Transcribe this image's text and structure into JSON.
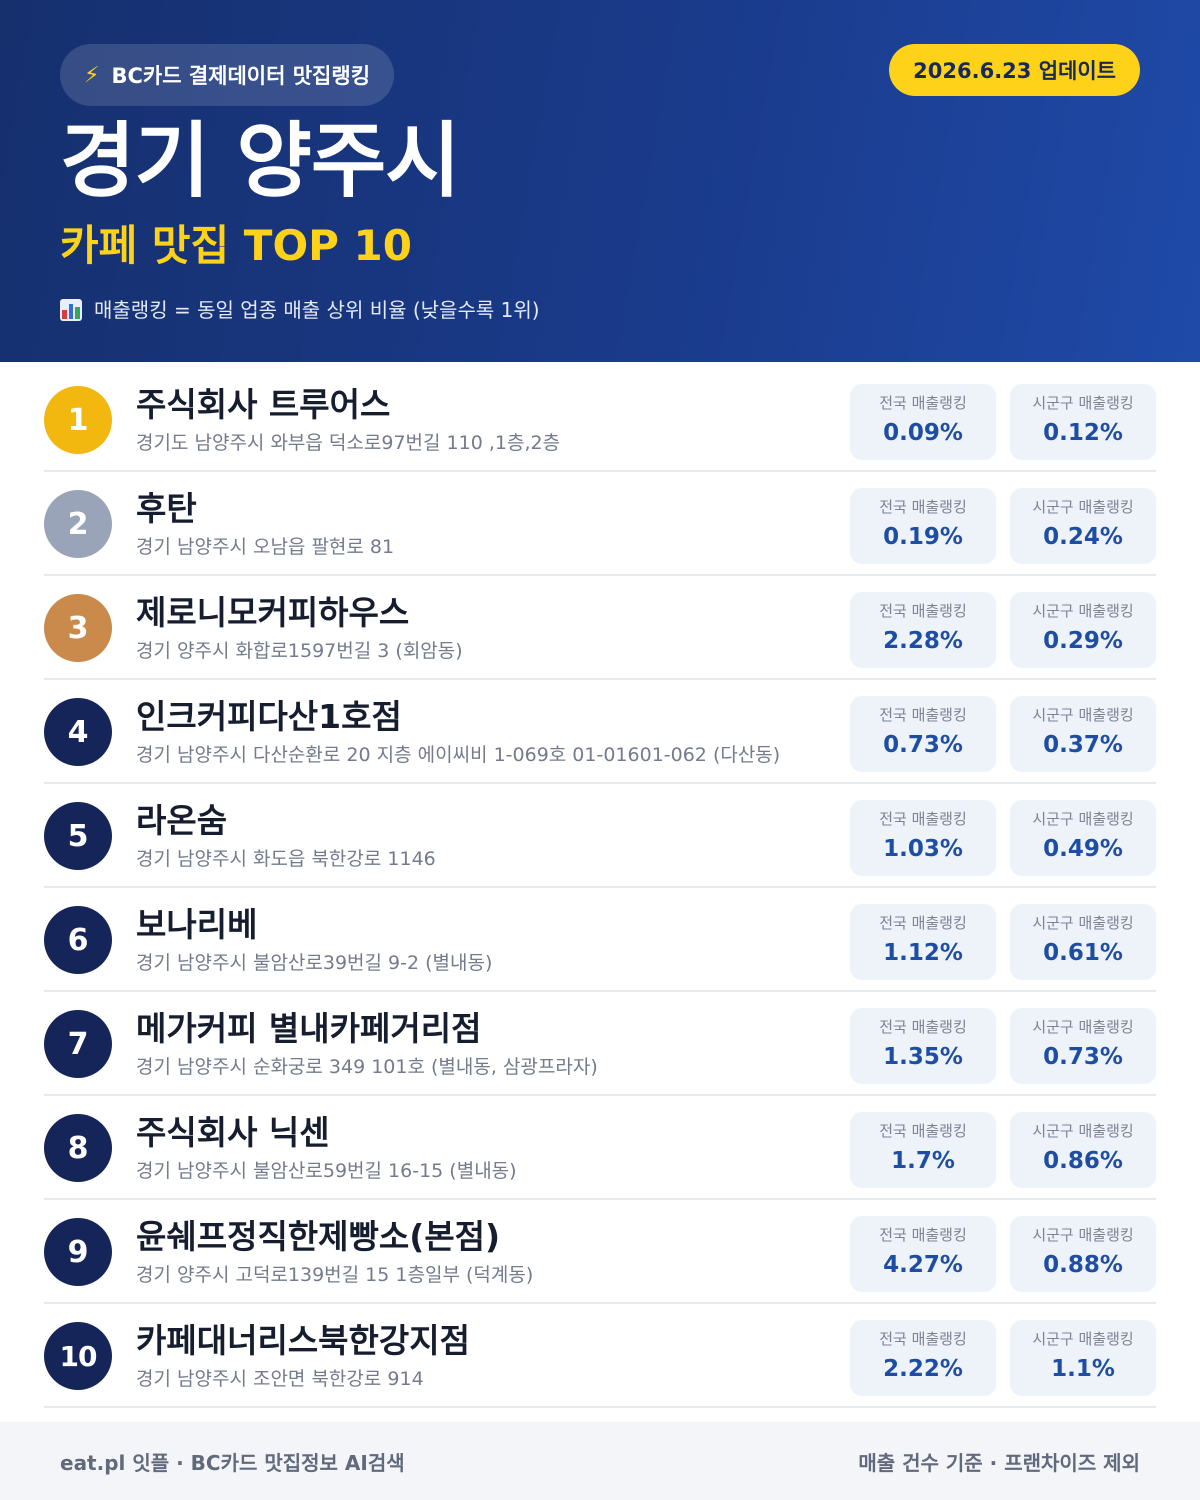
{
  "header": {
    "source_label": "BC카드 결제데이터 맛집랭킹",
    "source_icon": "lightning-icon",
    "update_label": "2026.6.23 업데이트",
    "title": "경기 양주시",
    "subtitle": "카페 맛집 TOP 10",
    "note": "매출랭킹 = 동일 업종 매출 상위 비율 (낮을수록 1위)",
    "note_icon": "bar-chart-icon"
  },
  "stat_labels": {
    "national": "전국 매출랭킹",
    "local": "시군구 매출랭킹"
  },
  "items": [
    {
      "rank": "1",
      "name": "주식회사 트루어스",
      "address": "경기도 남양주시 와부읍 덕소로97번길 110 ,1층,2층",
      "national": "0.09%",
      "local": "0.12%"
    },
    {
      "rank": "2",
      "name": "후탄",
      "address": "경기 남양주시 오남읍 팔현로 81",
      "national": "0.19%",
      "local": "0.24%"
    },
    {
      "rank": "3",
      "name": "제로니모커피하우스",
      "address": "경기 양주시 화합로1597번길 3 (회암동)",
      "national": "2.28%",
      "local": "0.29%"
    },
    {
      "rank": "4",
      "name": "인크커피다산1호점",
      "address": "경기 남양주시 다산순환로 20 지층 에이씨비 1-069호 01-01601-062 (다산동)",
      "national": "0.73%",
      "local": "0.37%"
    },
    {
      "rank": "5",
      "name": "라온숨",
      "address": "경기 남양주시 화도읍 북한강로 1146",
      "national": "1.03%",
      "local": "0.49%"
    },
    {
      "rank": "6",
      "name": "보나리베",
      "address": "경기 남양주시 불암산로39번길 9-2 (별내동)",
      "national": "1.12%",
      "local": "0.61%"
    },
    {
      "rank": "7",
      "name": "메가커피 별내카페거리점",
      "address": "경기 남양주시 순화궁로 349 101호 (별내동, 삼광프라자)",
      "national": "1.35%",
      "local": "0.73%"
    },
    {
      "rank": "8",
      "name": "주식회사 닉센",
      "address": "경기 남양주시 불암산로59번길 16-15 (별내동)",
      "national": "1.7%",
      "local": "0.86%"
    },
    {
      "rank": "9",
      "name": "윤쉐프정직한제빵소(본점)",
      "address": "경기 양주시 고덕로139번길 15 1층일부 (덕계동)",
      "national": "4.27%",
      "local": "0.88%"
    },
    {
      "rank": "10",
      "name": "카페대너리스북한강지점",
      "address": "경기 남양주시 조안면 북한강로 914",
      "national": "2.22%",
      "local": "1.1%"
    }
  ],
  "footer": {
    "left": "eat.pl 잇플 · BC카드 맛집정보 AI검색",
    "right": "매출 건수 기준 · 프랜차이즈 제외"
  }
}
